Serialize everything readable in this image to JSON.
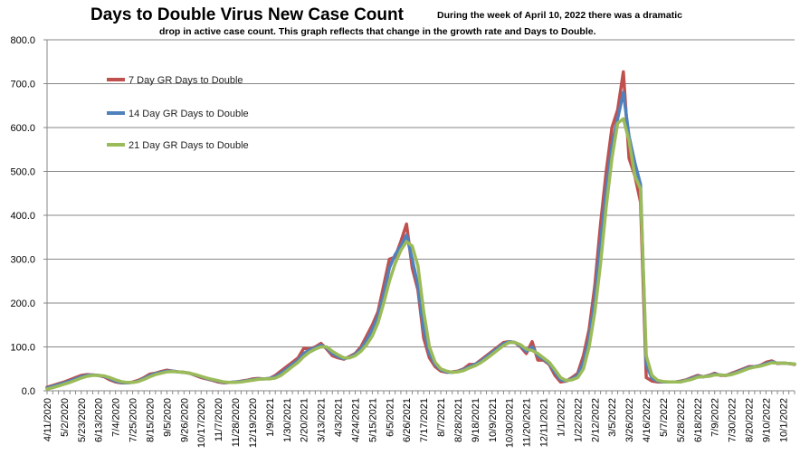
{
  "chart_data": {
    "type": "line",
    "title": "Days to Double Virus New Case Count",
    "subtitle_line1": "During the week of April 10, 2022 there was a dramatic",
    "subtitle_line2": "drop in active case count.  This graph reflects that change in the growth rate and Days to Double.",
    "xlabel": "",
    "ylabel": "",
    "ylim": [
      0,
      800
    ],
    "yticks": [
      "0.0",
      "100.0",
      "200.0",
      "300.0",
      "400.0",
      "500.0",
      "600.0",
      "700.0",
      "800.0"
    ],
    "grid": true,
    "legend_placement": "top-left",
    "x_interval": "weekly",
    "x_tick_labels": [
      "4/11/2020",
      "5/2/2020",
      "5/23/2020",
      "6/13/2020",
      "7/4/2020",
      "7/25/2020",
      "8/15/2020",
      "9/5/2020",
      "9/26/2020",
      "10/17/2020",
      "11/7/2020",
      "11/28/2020",
      "12/19/2020",
      "1/9/2021",
      "1/30/2021",
      "2/20/2021",
      "3/13/2021",
      "4/3/2021",
      "4/24/2021",
      "5/15/2021",
      "6/5/2021",
      "6/26/2021",
      "7/17/2021",
      "8/7/2021",
      "8/28/2021",
      "9/18/2021",
      "10/9/2021",
      "10/30/2021",
      "11/20/2021",
      "12/11/2021",
      "1/1/2022",
      "1/22/2022",
      "2/12/2022",
      "3/5/2022",
      "3/26/2022",
      "4/16/2022",
      "5/7/2022",
      "5/28/2022",
      "6/18/2022",
      "7/9/2022",
      "7/30/2022",
      "8/20/2022",
      "9/10/2022",
      "10/1/2022"
    ],
    "series": [
      {
        "name": "7 Day GR Days to Double",
        "color": "#c0504d",
        "values": [
          8,
          12,
          16,
          20,
          25,
          30,
          35,
          37,
          36,
          35,
          32,
          25,
          20,
          18,
          18,
          20,
          24,
          30,
          38,
          40,
          44,
          47,
          45,
          43,
          42,
          40,
          35,
          30,
          27,
          24,
          20,
          18,
          19,
          20,
          22,
          24,
          27,
          28,
          27,
          28,
          35,
          45,
          55,
          65,
          75,
          97,
          95,
          100,
          108,
          95,
          80,
          75,
          72,
          78,
          85,
          100,
          125,
          150,
          180,
          240,
          300,
          305,
          340,
          380,
          280,
          230,
          120,
          75,
          55,
          45,
          42,
          43,
          45,
          50,
          60,
          60,
          70,
          80,
          90,
          100,
          110,
          112,
          110,
          100,
          85,
          112,
          70,
          70,
          60,
          35,
          20,
          22,
          30,
          40,
          80,
          140,
          240,
          380,
          500,
          600,
          640,
          727,
          530,
          490,
          430,
          30,
          22,
          20,
          20,
          20,
          20,
          22,
          25,
          30,
          35,
          32,
          35,
          40,
          35,
          35,
          40,
          45,
          50,
          55,
          55,
          58,
          65,
          68,
          62,
          63,
          62,
          60
        ]
      },
      {
        "name": "14 Day GR Days to Double",
        "color": "#4f81bd",
        "values": [
          6,
          10,
          14,
          18,
          22,
          27,
          32,
          35,
          36,
          35,
          33,
          28,
          22,
          19,
          18,
          19,
          22,
          28,
          35,
          39,
          42,
          45,
          45,
          43,
          42,
          40,
          36,
          32,
          28,
          25,
          22,
          19,
          19,
          20,
          21,
          23,
          25,
          27,
          27,
          28,
          32,
          40,
          50,
          60,
          70,
          85,
          93,
          98,
          104,
          98,
          85,
          78,
          73,
          76,
          83,
          95,
          115,
          140,
          170,
          220,
          280,
          310,
          330,
          355,
          300,
          240,
          140,
          85,
          60,
          48,
          43,
          42,
          44,
          48,
          55,
          60,
          67,
          77,
          87,
          97,
          107,
          112,
          110,
          102,
          90,
          100,
          80,
          72,
          62,
          42,
          25,
          22,
          27,
          35,
          65,
          120,
          210,
          340,
          460,
          560,
          620,
          680,
          580,
          520,
          470,
          60,
          28,
          22,
          20,
          20,
          20,
          21,
          24,
          28,
          33,
          32,
          34,
          38,
          36,
          35,
          38,
          43,
          48,
          53,
          55,
          57,
          62,
          66,
          63,
          63,
          62,
          61
        ]
      },
      {
        "name": "21 Day GR Days to Double",
        "color": "#9bbb59",
        "values": [
          4,
          7,
          11,
          15,
          19,
          24,
          29,
          33,
          35,
          35,
          34,
          30,
          25,
          21,
          19,
          19,
          21,
          26,
          32,
          37,
          40,
          43,
          44,
          43,
          42,
          40,
          37,
          33,
          29,
          26,
          23,
          20,
          19,
          19,
          20,
          22,
          24,
          26,
          27,
          27,
          29,
          35,
          45,
          55,
          65,
          78,
          88,
          95,
          100,
          100,
          90,
          82,
          75,
          75,
          80,
          90,
          105,
          125,
          155,
          200,
          250,
          290,
          320,
          340,
          330,
          285,
          180,
          100,
          65,
          50,
          45,
          42,
          43,
          46,
          52,
          57,
          64,
          73,
          83,
          93,
          103,
          110,
          110,
          105,
          95,
          92,
          85,
          75,
          65,
          48,
          30,
          23,
          25,
          30,
          50,
          100,
          180,
          290,
          420,
          530,
          610,
          620,
          570,
          490,
          460,
          80,
          35,
          24,
          21,
          20,
          20,
          20,
          23,
          26,
          31,
          32,
          33,
          36,
          36,
          35,
          37,
          41,
          46,
          51,
          54,
          56,
          60,
          64,
          63,
          63,
          62,
          61
        ]
      }
    ]
  }
}
